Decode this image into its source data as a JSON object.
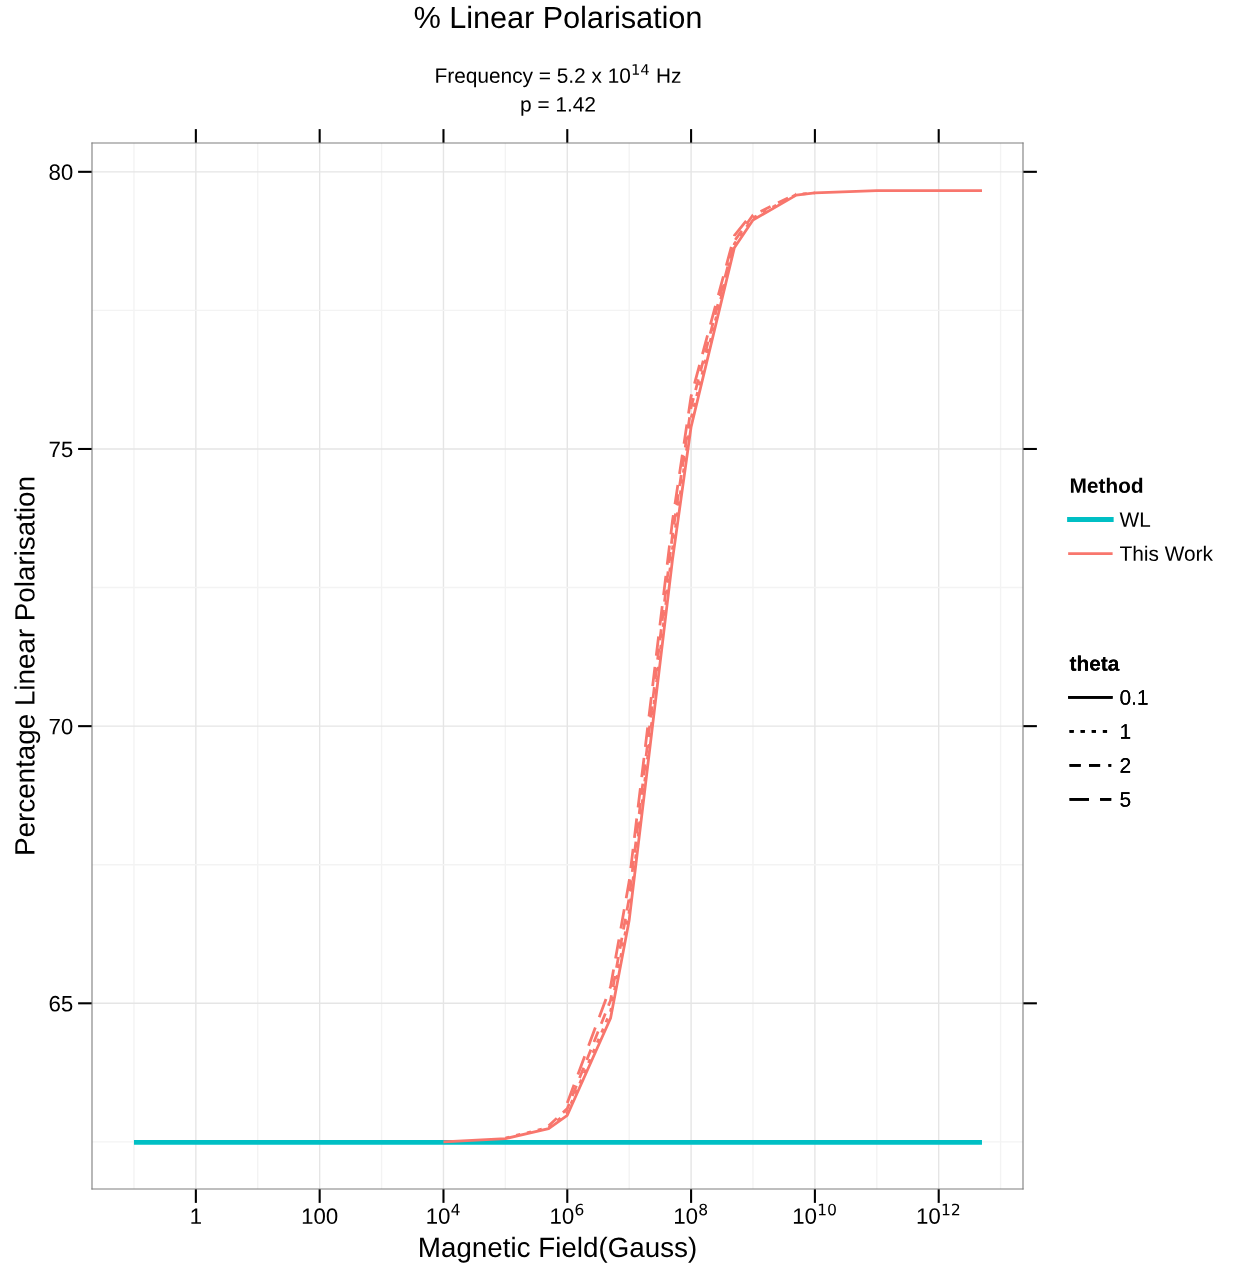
{
  "chart_data": {
    "type": "line",
    "title": "% Linear Polarisation",
    "subtitle": "Frequency = 5.2 x 10$^{14}$ Hz\np = 1.42",
    "xlabel": "Magnetic Field(Gauss)",
    "ylabel": "Percentage Linear Polarisation",
    "log": "x",
    "xlim": [
      0.021,
      23000000000000.0
    ],
    "xticks": [
      {
        "value": 1,
        "label": "1"
      },
      {
        "value": 100,
        "label": "100"
      },
      {
        "value": 10000,
        "label": "10$^{4}$"
      },
      {
        "value": 1000000,
        "label": "10$^{6}$"
      },
      {
        "value": 100000000,
        "label": "10$^{8}$"
      },
      {
        "value": 10000000000,
        "label": "10$^{10}$"
      },
      {
        "value": 1000000000000,
        "label": "10$^{12}$"
      }
    ],
    "ylim": [
      61.65,
      80.52
    ],
    "yticks": [
      65,
      70,
      75,
      80
    ],
    "grid": true,
    "legend": "right",
    "legend_title": "Method",
    "annotations": [
      "theta",
      "0.1",
      "1",
      "2",
      "5"
    ],
    "series": [
      {
        "name": "WL",
        "color": "#00bfc4",
        "line_style": "solid",
        "x": [
          0.1,
          5000000000000.0
        ],
        "values": [
          62.49,
          62.49
        ]
      },
      {
        "name": "This Work",
        "color": "#f8766d",
        "line_style": "solid",
        "x": [
          10000,
          100000,
          500000,
          1000000,
          5000000,
          10000000,
          50000000,
          100000000,
          500000000,
          1000000000,
          5000000000,
          10000000000,
          100000000000,
          5000000000000.0
        ],
        "values": [
          62.5,
          62.56,
          62.74,
          62.98,
          64.73,
          66.5,
          73.0,
          75.4,
          78.63,
          79.13,
          79.58,
          79.62,
          79.66,
          79.66
        ]
      },
      {
        "color": "#f8766d",
        "line_style": "dotted",
        "x": [
          100000,
          500000,
          1000000,
          5000000,
          10000000,
          50000000,
          100000000,
          500000000,
          1000000000,
          5000000000,
          10000000000
        ],
        "values": [
          62.57,
          62.76,
          63.03,
          64.85,
          66.65,
          73.2,
          75.55,
          78.7,
          79.17,
          79.59,
          79.62
        ]
      },
      {
        "color": "#f8766d",
        "line_style": "dashed",
        "x": [
          500000,
          1000000,
          5000000,
          10000000,
          50000000,
          100000000,
          500000000,
          1000000000,
          5000000000
        ],
        "values": [
          62.79,
          63.1,
          65.05,
          66.9,
          73.45,
          75.75,
          78.75,
          79.22,
          79.6
        ]
      },
      {
        "color": "#f8766d",
        "line_style": "longdash",
        "x": [
          1000000,
          5000000,
          10000000,
          50000000,
          100000000,
          500000000,
          1000000000
        ],
        "values": [
          63.2,
          65.3,
          67.2,
          73.7,
          75.95,
          78.85,
          79.27
        ]
      }
    ]
  }
}
